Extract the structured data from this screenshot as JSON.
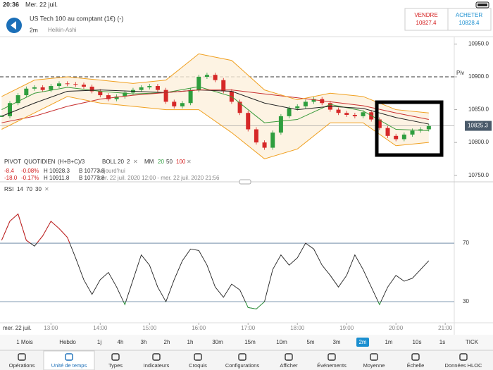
{
  "status": {
    "time": "20:36",
    "date": "Mer. 22 juil."
  },
  "header": {
    "instrument": "US Tech 100 au comptant (1€) (-)",
    "interval": "2m",
    "style": "Heikin-Ashi",
    "sell_label": "VENDRE",
    "sell": "10827.4",
    "buy_label": "ACHETER",
    "buy": "10828.4"
  },
  "legend": {
    "pivot": "PIVOT",
    "pivot_name": "QUOTIDIEN",
    "pivot_formula": "(H+B+C)/3",
    "boll": "BOLL",
    "boll_period": "20",
    "boll_dev": "2",
    "mm": "MM",
    "mm1": "20",
    "mm2": "50",
    "mm3": "100",
    "rows": [
      [
        "-8.4",
        "-0.08%",
        "H 10928.3",
        "B 10773.8",
        "Aujourd'hui"
      ],
      [
        "-18.0",
        "-0.17%",
        "H 10911.8",
        "B 10773.8",
        "mer. 22 juil. 2020 12:00 - mer. 22 juil. 2020 21:56"
      ]
    ]
  },
  "price_chart": {
    "type": "candlestick",
    "xlim": [
      718,
      1271
    ],
    "xticks": [
      {
        "value": 780,
        "label": "13:00"
      },
      {
        "value": 840,
        "label": "14:00"
      },
      {
        "value": 900,
        "label": "15:00"
      },
      {
        "value": 960,
        "label": "16:00"
      },
      {
        "value": 1020,
        "label": "17:00"
      },
      {
        "value": 1080,
        "label": "18:00"
      },
      {
        "value": 1140,
        "label": "19:00"
      },
      {
        "value": 1200,
        "label": "20:00"
      },
      {
        "value": 1260,
        "label": "21:00"
      }
    ],
    "date_label": "mer. 22 juil.",
    "ylim": [
      10740,
      10958
    ],
    "yticks": [
      {
        "value": 10950,
        "label": "10950.0"
      },
      {
        "value": 10900,
        "label": "10900.0"
      },
      {
        "value": 10850,
        "label": "10850.0"
      },
      {
        "value": 10800,
        "label": "10800.0"
      },
      {
        "value": 10750,
        "label": "10750.0"
      }
    ],
    "x": [
      720,
      730,
      740,
      750,
      760,
      770,
      780,
      790,
      800,
      810,
      820,
      830,
      840,
      850,
      860,
      870,
      880,
      890,
      900,
      910,
      920,
      930,
      940,
      950,
      960,
      970,
      980,
      990,
      1000,
      1010,
      1020,
      1030,
      1040,
      1050,
      1060,
      1070,
      1080,
      1090,
      1100,
      1110,
      1120,
      1130,
      1140,
      1150,
      1160,
      1170,
      1180,
      1190,
      1200,
      1210,
      1220,
      1230,
      1240
    ],
    "close": [
      10840,
      10860,
      10872,
      10882,
      10884,
      10880,
      10886,
      10890,
      10889,
      10888,
      10885,
      10878,
      10872,
      10866,
      10870,
      10876,
      10880,
      10884,
      10886,
      10880,
      10862,
      10855,
      10860,
      10880,
      10900,
      10903,
      10895,
      10878,
      10862,
      10845,
      10820,
      10800,
      10792,
      10815,
      10840,
      10852,
      10855,
      10862,
      10866,
      10860,
      10850,
      10845,
      10842,
      10840,
      10846,
      10835,
      10822,
      10810,
      10805,
      10812,
      10818,
      10820,
      10825
    ],
    "up_color": "#2e9e3e",
    "down_color": "#d62828",
    "indicator_x": [
      720,
      760,
      800,
      840,
      880,
      920,
      960,
      1000,
      1040,
      1080,
      1120,
      1160,
      1200,
      1240
    ],
    "series": [
      {
        "name": "MM 20",
        "color": "#3a9a3a",
        "values": [
          10850,
          10875,
          10884,
          10878,
          10874,
          10876,
          10885,
          10870,
          10830,
          10835,
          10858,
          10848,
          10820,
          10818
        ]
      },
      {
        "name": "MM 50",
        "color": "#222222",
        "values": [
          10840,
          10860,
          10878,
          10880,
          10878,
          10876,
          10880,
          10878,
          10860,
          10850,
          10855,
          10852,
          10838,
          10828
        ]
      },
      {
        "name": "MM 100",
        "color": "#c83030",
        "values": [
          10830,
          10840,
          10855,
          10866,
          10872,
          10876,
          10880,
          10880,
          10874,
          10868,
          10862,
          10856,
          10845,
          10835
        ]
      },
      {
        "name": "BOLL haut",
        "color": "#f0a020",
        "values": [
          10870,
          10895,
          10900,
          10895,
          10890,
          10895,
          10935,
          10925,
          10880,
          10865,
          10875,
          10870,
          10850,
          10845
        ]
      },
      {
        "name": "BOLL bas",
        "color": "#f0a020",
        "values": [
          10820,
          10845,
          10870,
          10860,
          10855,
          10850,
          10850,
          10815,
          10775,
          10790,
          10830,
          10830,
          10795,
          10800
        ]
      }
    ],
    "pivot": {
      "label": "Piv",
      "value": 10900
    },
    "last_price": 10825.3
  },
  "rsi_chart": {
    "type": "line",
    "title": "RSI",
    "period": "14",
    "upper": "70",
    "lower": "30",
    "ylim": [
      17,
      108.6
    ],
    "yticks": [
      70,
      30
    ],
    "color": "#222222",
    "high_color": "#d42020",
    "low_color": "#2e9e3e",
    "values": [
      72,
      85,
      90,
      72,
      68,
      75,
      85,
      80,
      74,
      60,
      45,
      35,
      45,
      50,
      40,
      28,
      45,
      62,
      55,
      40,
      30,
      45,
      58,
      66,
      65,
      55,
      40,
      33,
      42,
      38,
      26,
      25,
      30,
      52,
      62,
      55,
      60,
      70,
      66,
      55,
      48,
      40,
      48,
      62,
      52,
      40,
      28,
      40,
      48,
      44,
      46,
      52,
      58
    ]
  },
  "timeframes": {
    "items": [
      "1 Mois",
      "Hebdo",
      "1j",
      "4h",
      "3h",
      "2h",
      "1h",
      "30m",
      "15m",
      "10m",
      "5m",
      "3m",
      "2m",
      "1m",
      "10s",
      "1s",
      "TICK"
    ],
    "selected": 12
  },
  "tabs": {
    "items": [
      "Opérations",
      "Unité de temps",
      "Types",
      "Indicateurs",
      "Croquis",
      "Configurations",
      "Afficher",
      "Événements",
      "Moyenne",
      "Échelle",
      "Données HLOC"
    ],
    "selected": 1
  }
}
